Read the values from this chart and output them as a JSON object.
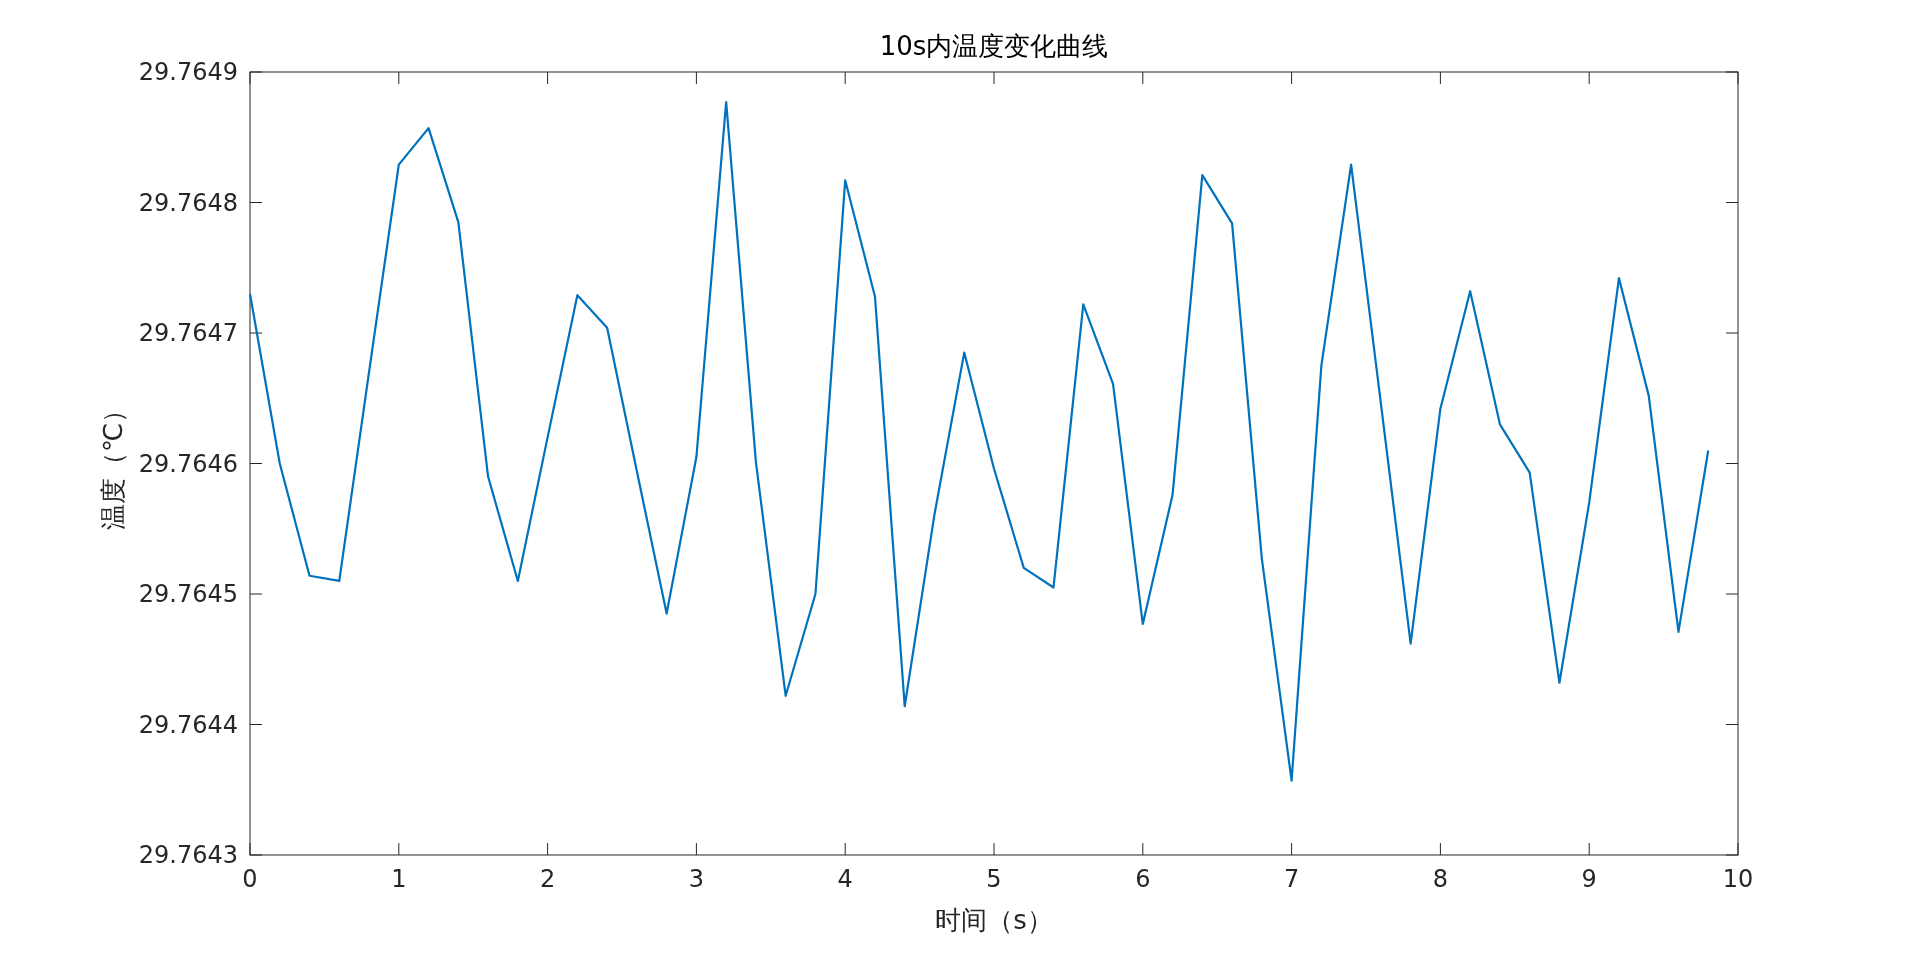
{
  "chart_data": {
    "type": "line",
    "title": "10s内温度变化曲线",
    "xlabel": "时间（s）",
    "ylabel": "温度（℃）",
    "x": [
      0,
      0.2,
      0.4,
      0.6,
      0.8,
      1.0,
      1.2,
      1.4,
      1.6,
      1.8,
      2.0,
      2.2,
      2.4,
      2.6,
      2.8,
      3.0,
      3.2,
      3.4,
      3.6,
      3.8,
      4.0,
      4.2,
      4.4,
      4.6,
      4.8,
      5.0,
      5.2,
      5.4,
      5.6,
      5.8,
      6.0,
      6.2,
      6.4,
      6.6,
      6.8,
      7.0,
      7.2,
      7.4,
      7.6,
      7.8,
      8.0,
      8.2,
      8.4,
      8.6,
      8.8,
      9.0,
      9.2,
      9.4,
      9.6,
      9.8
    ],
    "series": [
      {
        "color": "#0072bd",
        "values": [
          29.76473,
          29.7646,
          29.764514,
          29.76451,
          29.76467,
          29.764829,
          29.764857,
          29.764785,
          29.76459,
          29.76451,
          29.76462,
          29.764729,
          29.764704,
          29.764594,
          29.764485,
          29.764605,
          29.764877,
          29.764601,
          29.764422,
          29.7645,
          29.764817,
          29.764728,
          29.764414,
          29.764561,
          29.764685,
          29.764596,
          29.76452,
          29.764505,
          29.764722,
          29.764661,
          29.764477,
          29.764576,
          29.764821,
          29.764784,
          29.764527,
          29.764357,
          29.764675,
          29.764829,
          29.764646,
          29.764462,
          29.764642,
          29.764732,
          29.76463,
          29.764593,
          29.764432,
          29.76457,
          29.764742,
          29.764652,
          29.764471,
          29.76461
        ]
      }
    ],
    "xlim": [
      0,
      10
    ],
    "xticks": [
      0,
      1,
      2,
      3,
      4,
      5,
      6,
      7,
      8,
      9,
      10
    ],
    "ylim": [
      29.7643,
      29.7649
    ],
    "yticks": [
      29.7643,
      29.7644,
      29.7645,
      29.7646,
      29.7647,
      29.7648,
      29.7649
    ],
    "grid": false,
    "marker": "none",
    "line_style": "solid"
  }
}
